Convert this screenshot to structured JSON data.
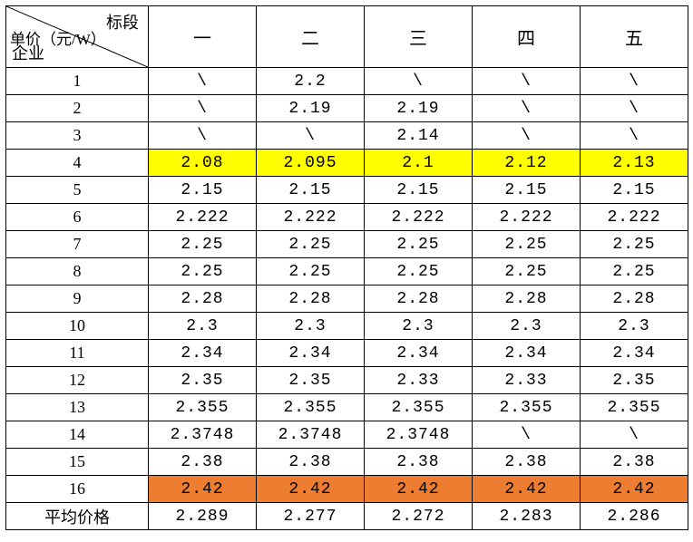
{
  "table": {
    "corner": {
      "top": "标段",
      "mid": "单价（元/W）",
      "bot": "企业"
    },
    "columns": [
      "一",
      "二",
      "三",
      "四",
      "五"
    ],
    "rows": [
      {
        "label": "1",
        "cells": [
          "\\",
          "2.2",
          "\\",
          "\\",
          "\\"
        ]
      },
      {
        "label": "2",
        "cells": [
          "\\",
          "2.19",
          "2.19",
          "\\",
          "\\"
        ]
      },
      {
        "label": "3",
        "cells": [
          "\\",
          "\\",
          "2.14",
          "\\",
          "\\"
        ]
      },
      {
        "label": "4",
        "cells": [
          "2.08",
          "2.095",
          "2.1",
          "2.12",
          "2.13"
        ],
        "highlight": "yellow"
      },
      {
        "label": "5",
        "cells": [
          "2.15",
          "2.15",
          "2.15",
          "2.15",
          "2.15"
        ]
      },
      {
        "label": "6",
        "cells": [
          "2.222",
          "2.222",
          "2.222",
          "2.222",
          "2.222"
        ]
      },
      {
        "label": "7",
        "cells": [
          "2.25",
          "2.25",
          "2.25",
          "2.25",
          "2.25"
        ]
      },
      {
        "label": "8",
        "cells": [
          "2.25",
          "2.25",
          "2.25",
          "2.25",
          "2.25"
        ]
      },
      {
        "label": "9",
        "cells": [
          "2.28",
          "2.28",
          "2.28",
          "2.28",
          "2.28"
        ]
      },
      {
        "label": "10",
        "cells": [
          "2.3",
          "2.3",
          "2.3",
          "2.3",
          "2.3"
        ]
      },
      {
        "label": "11",
        "cells": [
          "2.34",
          "2.34",
          "2.34",
          "2.34",
          "2.34"
        ]
      },
      {
        "label": "12",
        "cells": [
          "2.35",
          "2.35",
          "2.33",
          "2.33",
          "2.35"
        ]
      },
      {
        "label": "13",
        "cells": [
          "2.355",
          "2.355",
          "2.355",
          "2.355",
          "2.355"
        ]
      },
      {
        "label": "14",
        "cells": [
          "2.3748",
          "2.3748",
          "2.3748",
          "\\",
          "\\"
        ]
      },
      {
        "label": "15",
        "cells": [
          "2.38",
          "2.38",
          "2.38",
          "2.38",
          "2.38"
        ]
      },
      {
        "label": "16",
        "cells": [
          "2.42",
          "2.42",
          "2.42",
          "2.42",
          "2.42"
        ],
        "highlight": "orange"
      },
      {
        "label": "平均价格",
        "cells": [
          "2.289",
          "2.277",
          "2.272",
          "2.283",
          "2.286"
        ]
      }
    ],
    "colors": {
      "yellow": "#ffff00",
      "orange": "#ed7d31",
      "border": "#000000",
      "background": "#ffffff"
    }
  }
}
